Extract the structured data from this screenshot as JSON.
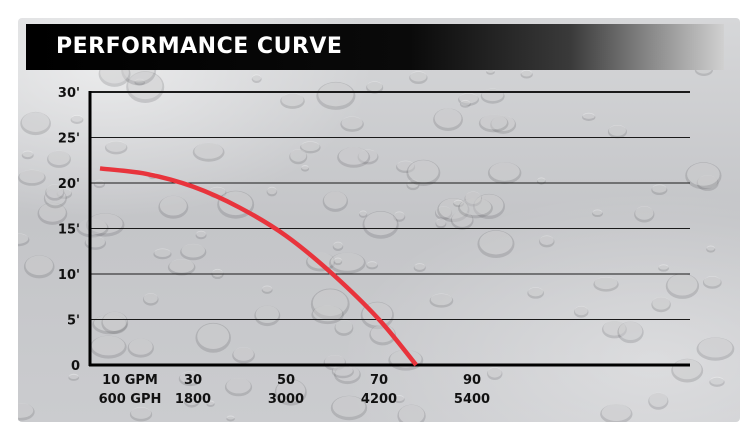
{
  "title": "PERFORMANCE CURVE",
  "colors": {
    "curve": "#e8343c",
    "title_bar": "#000000",
    "title_text": "#ffffff",
    "grid": "#1a1a1a"
  },
  "chart_data": {
    "type": "line",
    "title": "PERFORMANCE CURVE",
    "xlabel": "",
    "ylabel": "",
    "y_ticks": [
      "30'",
      "25'",
      "20'",
      "15'",
      "10'",
      "5'",
      "0"
    ],
    "y_tick_values": [
      30,
      25,
      20,
      15,
      10,
      5,
      0
    ],
    "x_ticks_gpm": [
      "10 GPM",
      "30",
      "50",
      "70",
      "90"
    ],
    "x_ticks_gph": [
      "600 GPH",
      "1800",
      "3000",
      "4200",
      "5400"
    ],
    "x_tick_values": [
      10,
      30,
      50,
      70,
      90
    ],
    "xlim": [
      10,
      90
    ],
    "ylim": [
      0,
      30
    ],
    "grid": true,
    "series": [
      {
        "color": "#e8343c",
        "x": [
          10,
          20,
          30,
          40,
          50,
          60,
          70,
          78
        ],
        "y": [
          21.6,
          21.0,
          19.6,
          17.3,
          14.2,
          10.0,
          5.0,
          0
        ]
      }
    ]
  }
}
